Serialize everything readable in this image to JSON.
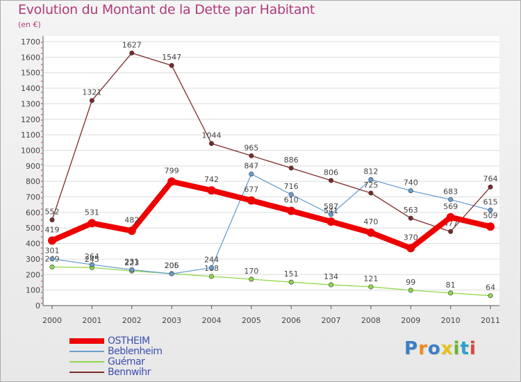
{
  "chart_data": {
    "type": "line",
    "title": "Evolution du Montant de la Dette par Habitant",
    "subtitle": "(en €)",
    "categories": [
      "2000",
      "2001",
      "2002",
      "2003",
      "2004",
      "2005",
      "2006",
      "2007",
      "2008",
      "2009",
      "2010",
      "2011"
    ],
    "ylim": [
      0,
      1700
    ],
    "yticks": [
      0,
      100,
      200,
      300,
      400,
      500,
      600,
      700,
      800,
      900,
      1000,
      1100,
      1200,
      1300,
      1400,
      1500,
      1600,
      1700
    ],
    "legend_position": "bottom-left",
    "series": [
      {
        "name": "OSTHEIM",
        "color": "#ee0000",
        "values": [
          419,
          531,
          482,
          799,
          742,
          677,
          610,
          541,
          470,
          370,
          569,
          509
        ]
      },
      {
        "name": "Beblenheim",
        "color": "#6a9fd0",
        "values": [
          301,
          264,
          231,
          205,
          244,
          847,
          716,
          587,
          812,
          740,
          683,
          615
        ]
      },
      {
        "name": "Guémar",
        "color": "#8fd84a",
        "values": [
          249,
          245,
          223,
          206,
          188,
          170,
          151,
          134,
          121,
          99,
          81,
          64
        ]
      },
      {
        "name": "Bennwihr",
        "color": "#7a2a2a",
        "values": [
          552,
          1321,
          1627,
          1547,
          1044,
          965,
          886,
          806,
          725,
          563,
          477,
          764
        ]
      }
    ]
  },
  "logo": {
    "text": "Proxiti"
  }
}
